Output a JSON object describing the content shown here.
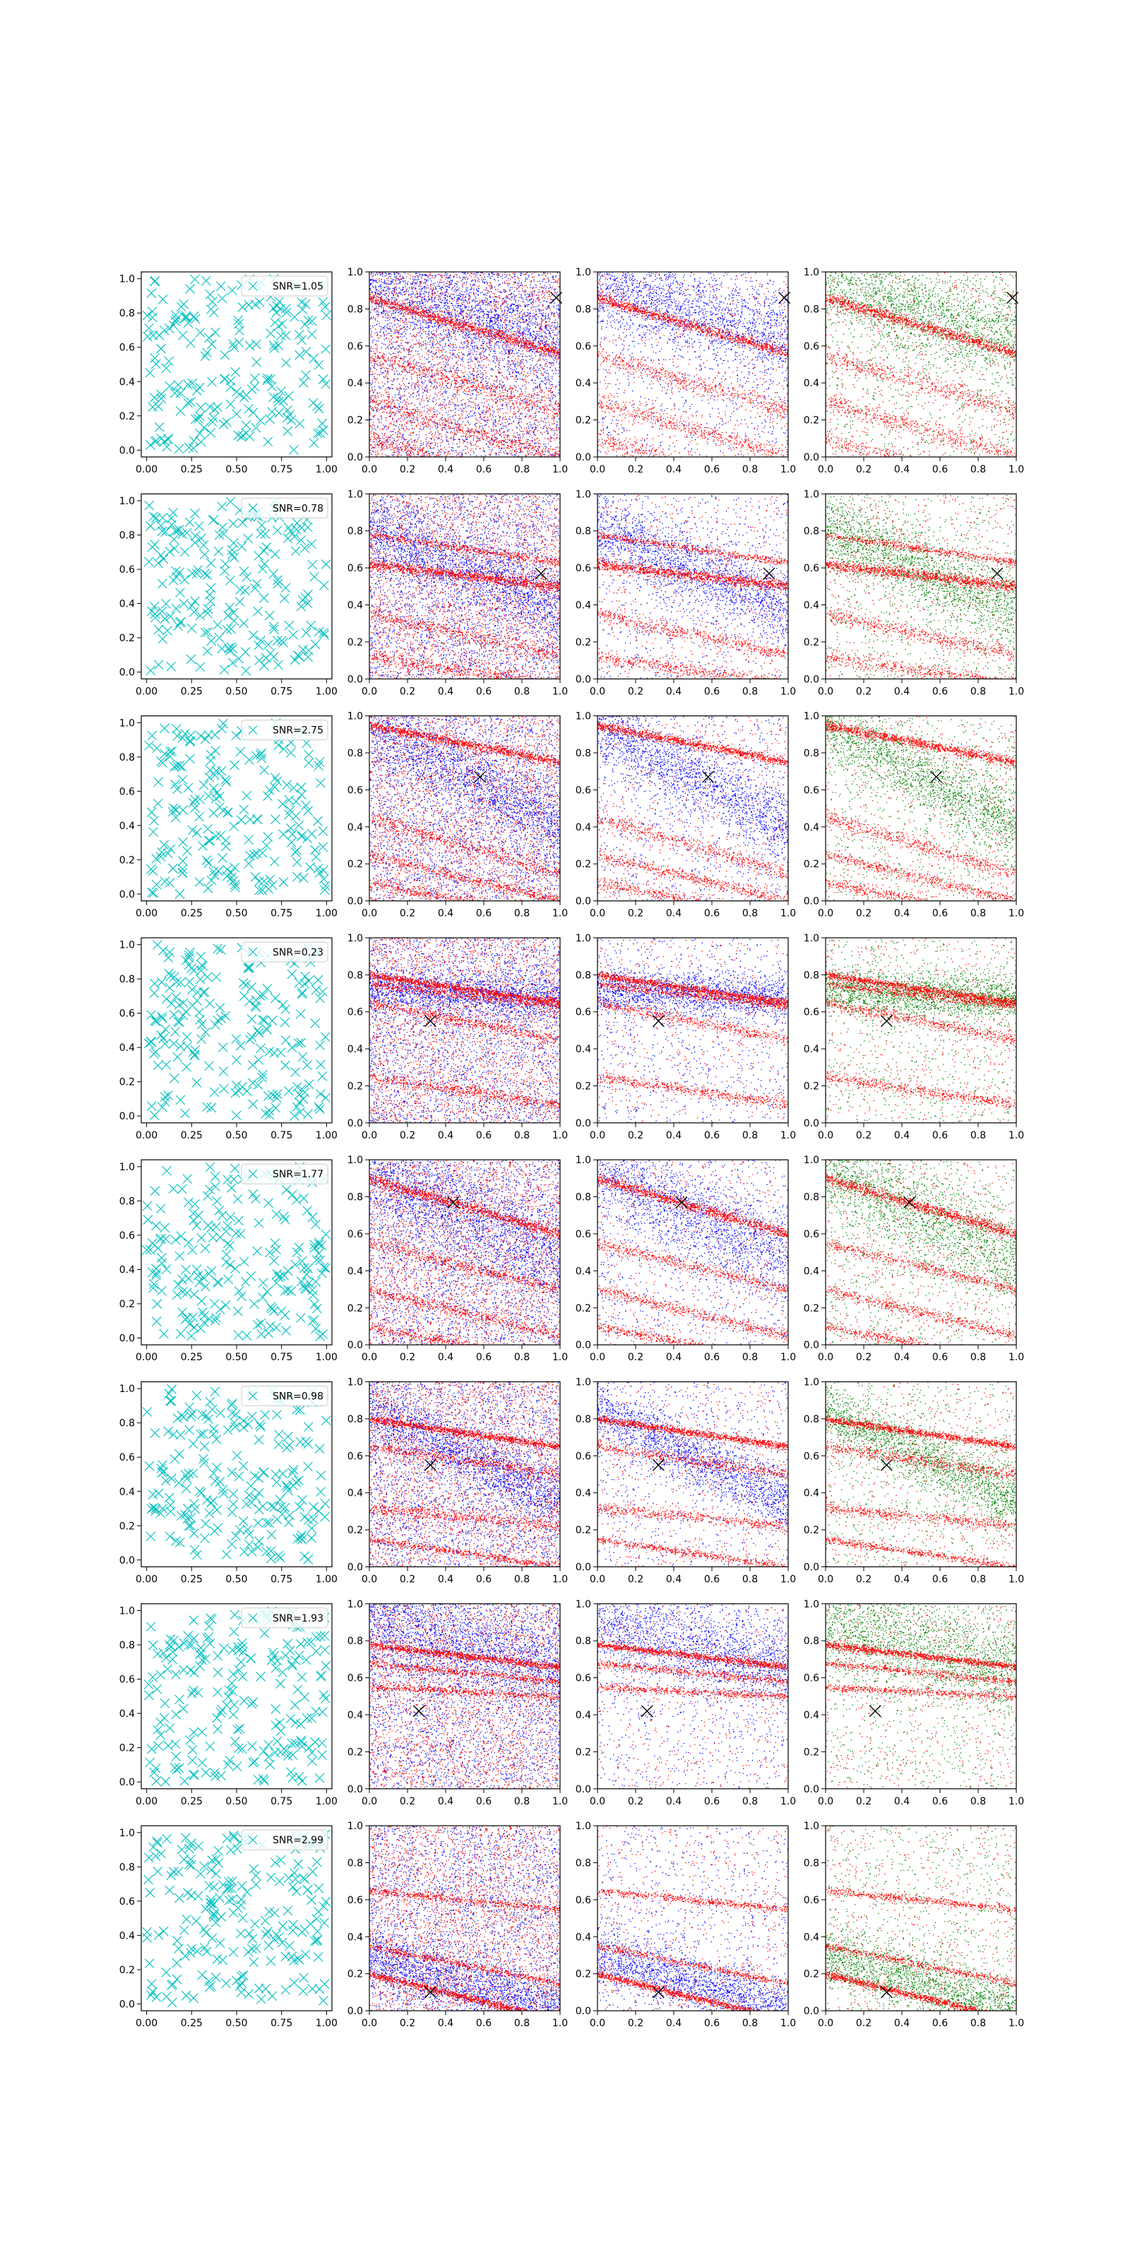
{
  "figure": {
    "rows": 8,
    "cols": 4
  },
  "colors": {
    "cyan_marker": "#00bfbf",
    "blue": "#0000ff",
    "red": "#ff0000",
    "green": "#008000",
    "peak_marker": "#000000"
  },
  "chart_data": {
    "type": "scatter",
    "grid": false,
    "xlim": [
      0,
      1
    ],
    "ylim": [
      0,
      1
    ],
    "tick_labels_col1": [
      "0.00",
      "0.25",
      "0.50",
      "0.75",
      "1.00"
    ],
    "tick_labels_cols234_x": [
      "0.0",
      "0.2",
      "0.4",
      "0.6",
      "0.8",
      "1.0"
    ],
    "tick_labels_y": [
      "0.0",
      "0.2",
      "0.4",
      "0.6",
      "0.8",
      "1.0"
    ],
    "legend_placement": "top-right",
    "columns": [
      {
        "content": "scattered cyan x markers",
        "legend": "SNR"
      },
      {
        "content": "blue and red dots, diagonal streaks"
      },
      {
        "content": "blue diffuse band and red narrow streaks"
      },
      {
        "content": "green diffuse band and red narrow streaks"
      }
    ],
    "rows": [
      {
        "snr_label": "SNR=1.05",
        "marker": [
          0.98,
          0.86
        ],
        "red_streaks": [
          [
            0.86,
            -0.3,
            0.03
          ],
          [
            0.55,
            -0.3,
            0.05
          ],
          [
            0.3,
            -0.3,
            0.05
          ],
          [
            0.1,
            -0.3,
            0.05
          ]
        ],
        "blue_band": [
          0.95,
          -0.32,
          0.12
        ],
        "seed": 11
      },
      {
        "snr_label": "SNR=0.78",
        "marker": [
          0.9,
          0.57
        ],
        "red_streaks": [
          [
            0.62,
            -0.12,
            0.03
          ],
          [
            0.35,
            -0.22,
            0.04
          ],
          [
            0.12,
            -0.15,
            0.04
          ],
          [
            0.78,
            -0.15,
            0.02
          ]
        ],
        "blue_band": [
          0.82,
          -0.45,
          0.1
        ],
        "seed": 23
      },
      {
        "snr_label": "SNR=2.75",
        "marker": [
          0.58,
          0.67
        ],
        "red_streaks": [
          [
            0.95,
            -0.2,
            0.025
          ],
          [
            0.45,
            -0.3,
            0.04
          ],
          [
            0.25,
            -0.25,
            0.03
          ],
          [
            0.1,
            -0.2,
            0.03
          ]
        ],
        "blue_band": [
          0.95,
          -0.55,
          0.1
        ],
        "seed": 37
      },
      {
        "snr_label": "SNR=0.23",
        "marker": [
          0.32,
          0.55
        ],
        "red_streaks": [
          [
            0.8,
            -0.15,
            0.02
          ],
          [
            0.75,
            -0.12,
            0.02
          ],
          [
            0.65,
            -0.2,
            0.03
          ],
          [
            0.25,
            -0.15,
            0.03
          ]
        ],
        "blue_band": [
          0.72,
          -0.05,
          0.06
        ],
        "seed": 41
      },
      {
        "snr_label": "SNR=1.77",
        "marker": [
          0.44,
          0.77
        ],
        "red_streaks": [
          [
            0.9,
            -0.3,
            0.03
          ],
          [
            0.55,
            -0.25,
            0.03
          ],
          [
            0.3,
            -0.25,
            0.03
          ],
          [
            0.1,
            -0.2,
            0.03
          ]
        ],
        "blue_band": [
          0.95,
          -0.5,
          0.12
        ],
        "seed": 53
      },
      {
        "snr_label": "SNR=0.98",
        "marker": [
          0.32,
          0.55
        ],
        "red_streaks": [
          [
            0.8,
            -0.15,
            0.02
          ],
          [
            0.65,
            -0.15,
            0.03
          ],
          [
            0.32,
            -0.1,
            0.03
          ],
          [
            0.15,
            -0.15,
            0.02
          ]
        ],
        "blue_band": [
          0.85,
          -0.5,
          0.08
        ],
        "seed": 67
      },
      {
        "snr_label": "SNR=1.93",
        "marker": [
          0.26,
          0.42
        ],
        "red_streaks": [
          [
            0.78,
            -0.12,
            0.02
          ],
          [
            0.68,
            -0.1,
            0.02
          ],
          [
            0.55,
            -0.05,
            0.02
          ]
        ],
        "blue_band": [
          0.9,
          -0.25,
          0.12
        ],
        "seed": 71
      },
      {
        "snr_label": "SNR=2.99",
        "marker": [
          0.32,
          0.1
        ],
        "red_streaks": [
          [
            0.2,
            -0.25,
            0.02
          ],
          [
            0.35,
            -0.2,
            0.02
          ],
          [
            0.65,
            -0.1,
            0.02
          ]
        ],
        "blue_band": [
          0.3,
          -0.3,
          0.08
        ],
        "seed": 83
      }
    ]
  }
}
